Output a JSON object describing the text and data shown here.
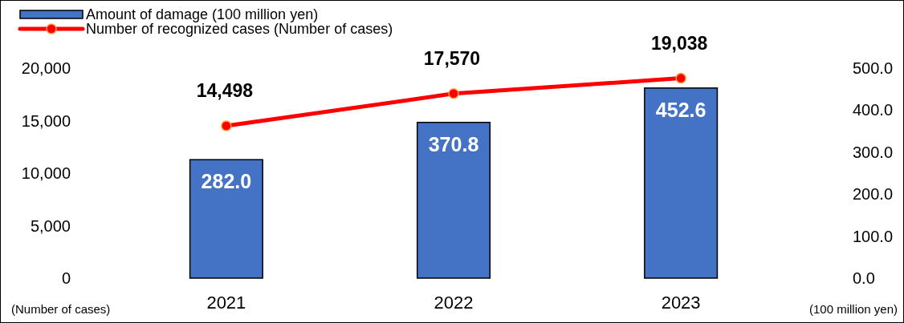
{
  "chart_data": {
    "type": "bar",
    "categories": [
      "2021",
      "2022",
      "2023"
    ],
    "series": [
      {
        "name": "Amount of damage (100 million yen)",
        "axis": "y2",
        "color": "#4472c4",
        "values": [
          282.0,
          370.8,
          452.6
        ],
        "value_labels": [
          "282.0",
          "370.8",
          "452.6"
        ]
      },
      {
        "name": "Number of recognized cases (Number of cases)",
        "type": "line",
        "axis": "y",
        "color": "#ff0000",
        "values": [
          14498,
          17570,
          19038
        ],
        "value_labels": [
          "14,498",
          "17,570",
          "19,038"
        ]
      }
    ],
    "ylim": [
      0,
      20000
    ],
    "yticks": [
      {
        "value": 0,
        "label": "0"
      },
      {
        "value": 5000,
        "label": "5,000"
      },
      {
        "value": 10000,
        "label": "10,000"
      },
      {
        "value": 15000,
        "label": "15,000"
      },
      {
        "value": 20000,
        "label": "20,000"
      }
    ],
    "y2lim": [
      0,
      500
    ],
    "y2ticks": [
      {
        "value": 0,
        "label": "0.0"
      },
      {
        "value": 100,
        "label": "100.0"
      },
      {
        "value": 200,
        "label": "200.0"
      },
      {
        "value": 300,
        "label": "300.0"
      },
      {
        "value": 400,
        "label": "400.0"
      },
      {
        "value": 500,
        "label": "500.0"
      }
    ],
    "ylabel": "(Number of cases)",
    "y2label": "(100 million yen)",
    "legend": "top left",
    "marker": "circle",
    "line_style": "solid",
    "grid": false
  }
}
